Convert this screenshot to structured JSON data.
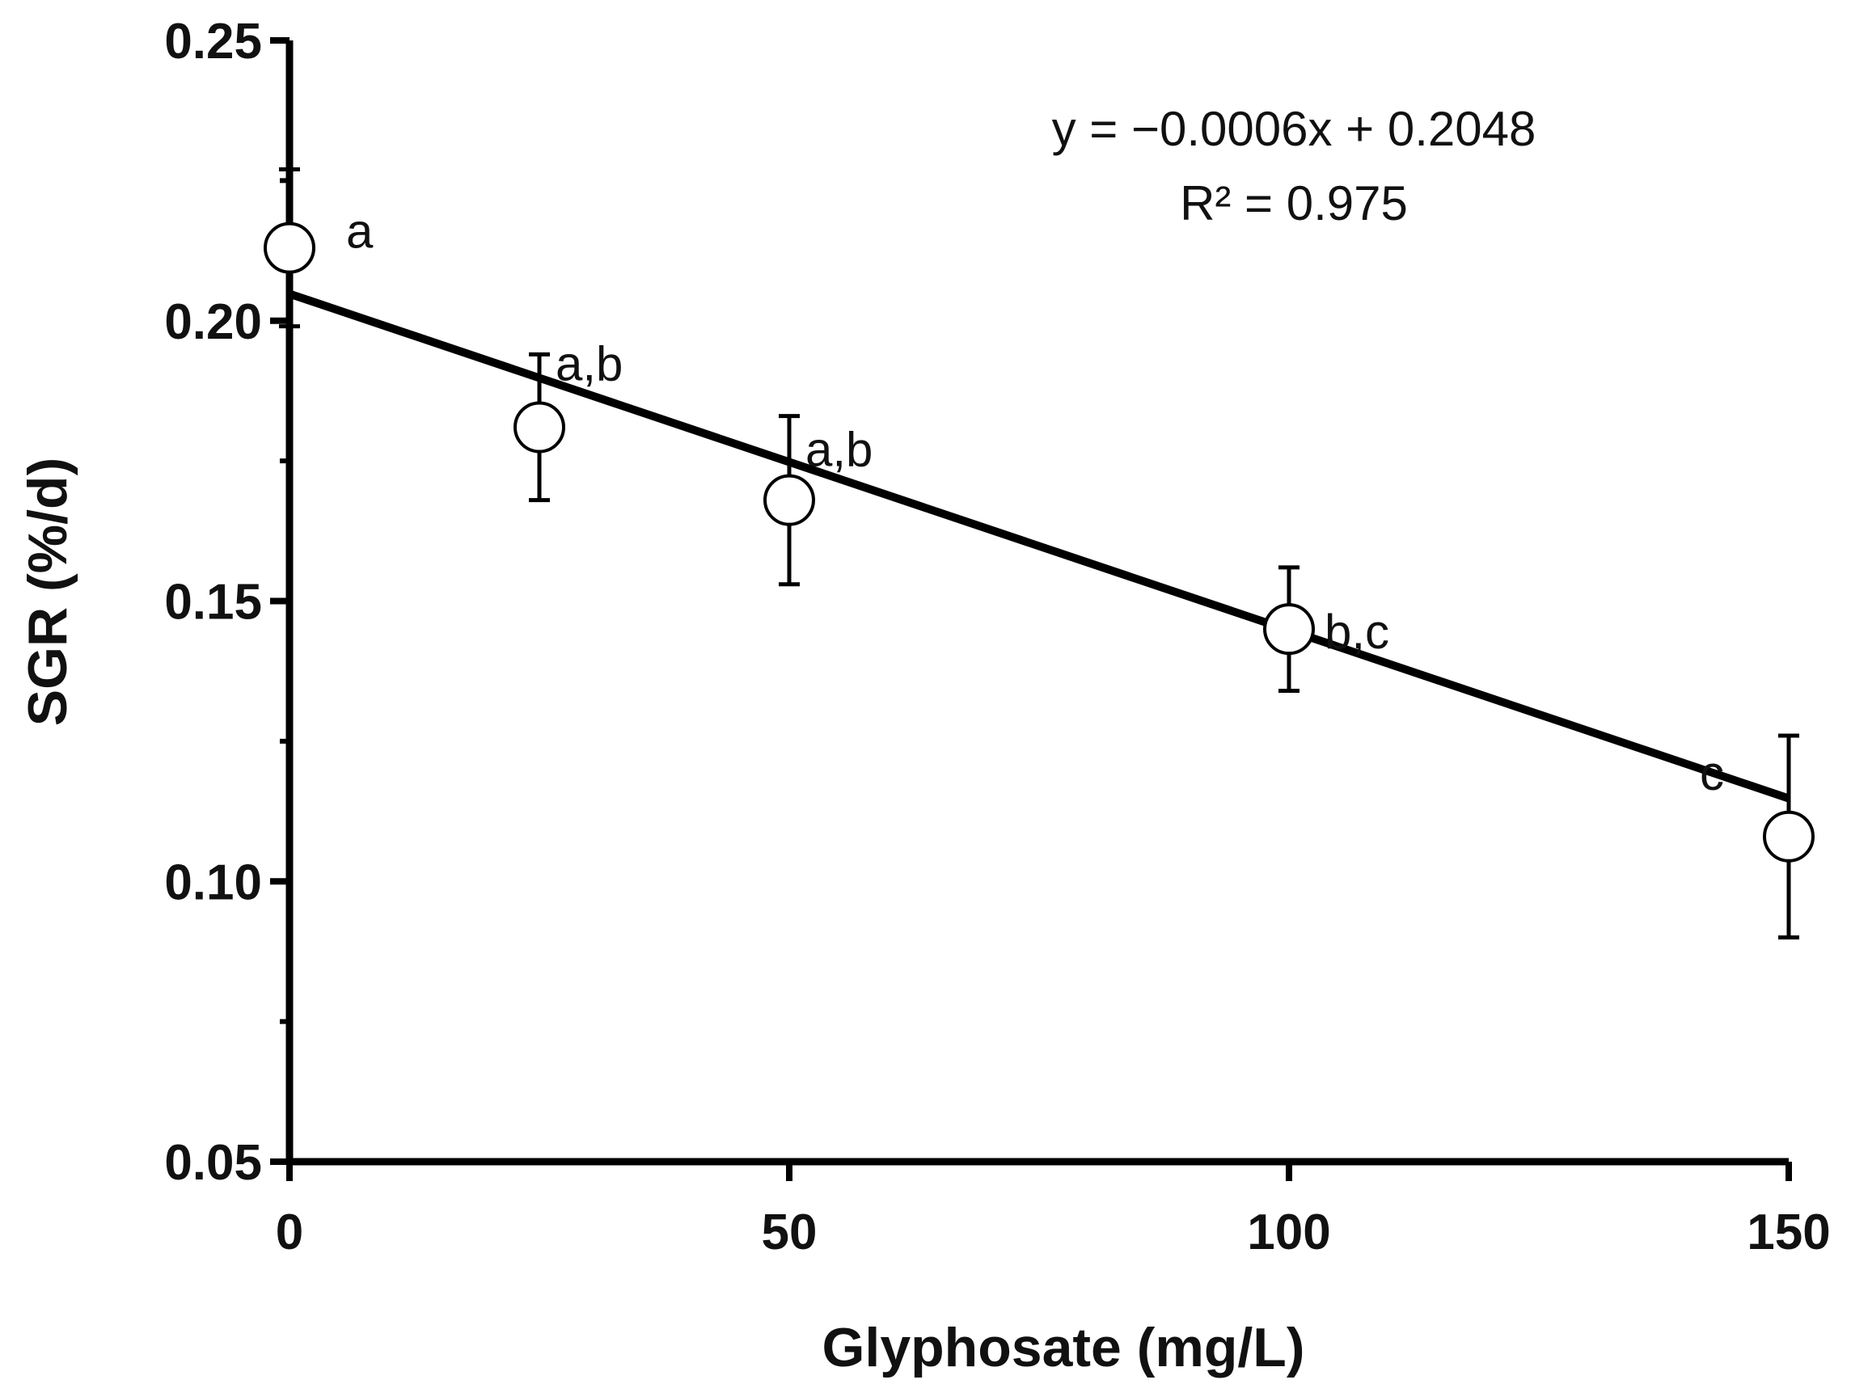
{
  "chart_data": {
    "type": "scatter",
    "title": "",
    "xlabel": "Glyphosate (mg/L)",
    "ylabel": "SGR (%/d)",
    "xlim": [
      0,
      150
    ],
    "ylim": [
      0.05,
      0.25
    ],
    "x_ticks": [
      "0",
      "50",
      "100",
      "150"
    ],
    "y_ticks": [
      "0.05",
      "0.10",
      "0.15",
      "0.20",
      "0.25"
    ],
    "grid": false,
    "legend": "none",
    "series": [
      {
        "points": [
          {
            "x": 0,
            "y": 0.213,
            "err_low": 0.014,
            "err_high": 0.014,
            "label": "a"
          },
          {
            "x": 25,
            "y": 0.181,
            "err_low": 0.013,
            "err_high": 0.013,
            "label": "a,b"
          },
          {
            "x": 50,
            "y": 0.168,
            "err_low": 0.015,
            "err_high": 0.015,
            "label": "a,b"
          },
          {
            "x": 100,
            "y": 0.145,
            "err_low": 0.011,
            "err_high": 0.011,
            "label": "b,c"
          },
          {
            "x": 150,
            "y": 0.108,
            "err_low": 0.018,
            "err_high": 0.018,
            "label": "c"
          }
        ]
      }
    ],
    "trendline": {
      "slope": -0.0006,
      "intercept": 0.2048,
      "x_from": 0,
      "x_to": 150
    },
    "annotations": [
      "y = −0.0006x + 0.2048",
      "R² = 0.975"
    ],
    "colors": {
      "line": "#000000",
      "marker_fill": "#ffffff",
      "marker_stroke": "#000000"
    }
  }
}
